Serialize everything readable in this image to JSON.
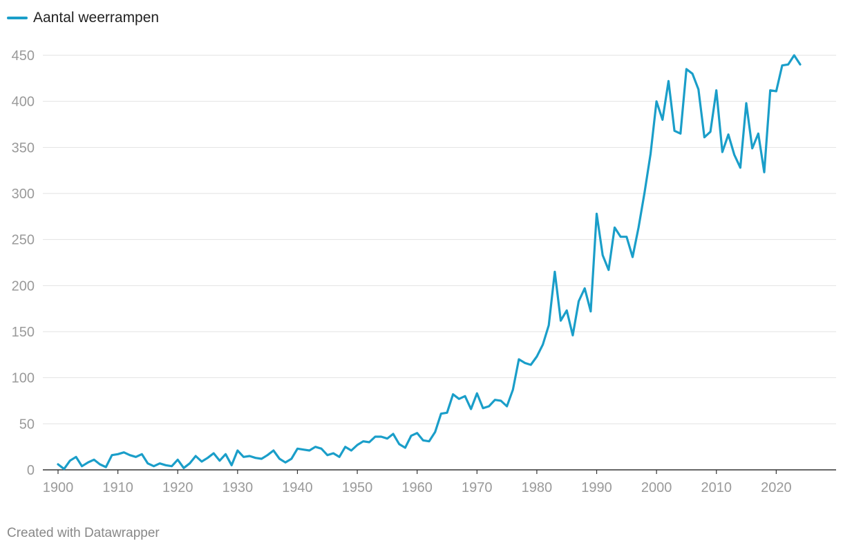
{
  "legend": {
    "label": "Aantal weerrampen"
  },
  "credit": "Created with Datawrapper",
  "colors": {
    "line": "#1a9ec9",
    "grid": "#e2e2e2",
    "axis": "#333333",
    "tick_text": "#9a9a9a"
  },
  "chart_data": {
    "type": "line",
    "xlabel": "",
    "ylabel": "",
    "xlim": [
      1900,
      2024
    ],
    "ylim": [
      0,
      450
    ],
    "x_ticks": [
      1900,
      1910,
      1920,
      1930,
      1940,
      1950,
      1960,
      1970,
      1980,
      1990,
      2000,
      2010,
      2020
    ],
    "y_ticks": [
      0,
      50,
      100,
      150,
      200,
      250,
      300,
      350,
      400,
      450
    ],
    "grid": "horizontal",
    "legend_position": "top-left",
    "series": [
      {
        "name": "Aantal weerrampen",
        "x": [
          1900,
          1901,
          1902,
          1903,
          1904,
          1905,
          1906,
          1907,
          1908,
          1909,
          1910,
          1911,
          1912,
          1913,
          1914,
          1915,
          1916,
          1917,
          1918,
          1919,
          1920,
          1921,
          1922,
          1923,
          1924,
          1925,
          1926,
          1927,
          1928,
          1929,
          1930,
          1931,
          1932,
          1933,
          1934,
          1935,
          1936,
          1937,
          1938,
          1939,
          1940,
          1941,
          1942,
          1943,
          1944,
          1945,
          1946,
          1947,
          1948,
          1949,
          1950,
          1951,
          1952,
          1953,
          1954,
          1955,
          1956,
          1957,
          1958,
          1959,
          1960,
          1961,
          1962,
          1963,
          1964,
          1965,
          1966,
          1967,
          1968,
          1969,
          1970,
          1971,
          1972,
          1973,
          1974,
          1975,
          1976,
          1977,
          1978,
          1979,
          1980,
          1981,
          1982,
          1983,
          1984,
          1985,
          1986,
          1987,
          1988,
          1989,
          1990,
          1991,
          1992,
          1993,
          1994,
          1995,
          1996,
          1997,
          1998,
          1999,
          2000,
          2001,
          2002,
          2003,
          2004,
          2005,
          2006,
          2007,
          2008,
          2009,
          2010,
          2011,
          2012,
          2013,
          2014,
          2015,
          2016,
          2017,
          2018,
          2019,
          2020,
          2021,
          2022,
          2023,
          2024
        ],
        "values": [
          6,
          1,
          10,
          14,
          4,
          8,
          11,
          6,
          3,
          16,
          17,
          19,
          16,
          14,
          17,
          7,
          4,
          7,
          5,
          4,
          11,
          2,
          7,
          15,
          9,
          13,
          18,
          10,
          17,
          5,
          21,
          14,
          15,
          13,
          12,
          16,
          21,
          12,
          8,
          12,
          23,
          22,
          21,
          25,
          23,
          16,
          18,
          14,
          25,
          21,
          27,
          31,
          30,
          36,
          36,
          34,
          39,
          28,
          24,
          37,
          40,
          32,
          31,
          41,
          61,
          62,
          82,
          77,
          80,
          66,
          83,
          67,
          69,
          76,
          75,
          69,
          87,
          120,
          116,
          114,
          123,
          136,
          157,
          215,
          162,
          173,
          146,
          183,
          197,
          172,
          278,
          233,
          217,
          263,
          253,
          253,
          231,
          263,
          301,
          343,
          400,
          380,
          422,
          368,
          365,
          435,
          430,
          413,
          361,
          367,
          412,
          345,
          364,
          342,
          328,
          398,
          349,
          365,
          323,
          412,
          411,
          439,
          440,
          450,
          440
        ]
      }
    ]
  }
}
